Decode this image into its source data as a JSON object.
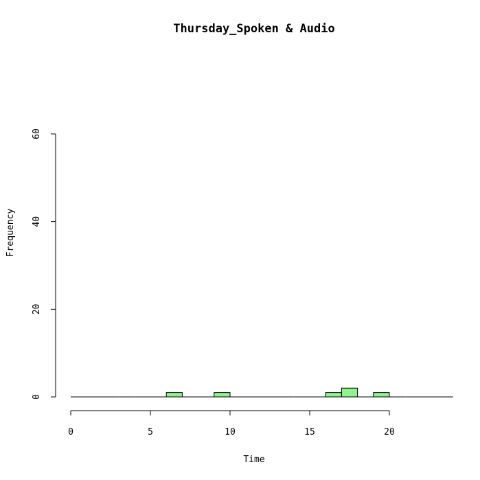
{
  "chart_data": {
    "type": "bar",
    "title": "Thursday_Spoken & Audio",
    "xlabel": "Time",
    "ylabel": "Frequency",
    "bar_color": "#90f28c",
    "bin_width": 1,
    "bins": {
      "start": [
        0,
        1,
        2,
        3,
        4,
        5,
        6,
        7,
        8,
        9,
        10,
        11,
        12,
        13,
        14,
        15,
        16,
        17,
        18,
        19,
        20,
        21,
        22,
        23
      ],
      "counts": [
        0,
        0,
        0,
        0,
        0,
        0,
        1,
        0,
        0,
        1,
        0,
        0,
        0,
        0,
        0,
        0,
        1,
        2,
        0,
        1,
        0,
        0,
        0,
        0
      ]
    },
    "xlim": [
      0,
      24
    ],
    "ylim": [
      0,
      60
    ],
    "xticks": [
      0,
      5,
      10,
      15,
      20
    ],
    "yticks": [
      0,
      20,
      40,
      60
    ]
  }
}
